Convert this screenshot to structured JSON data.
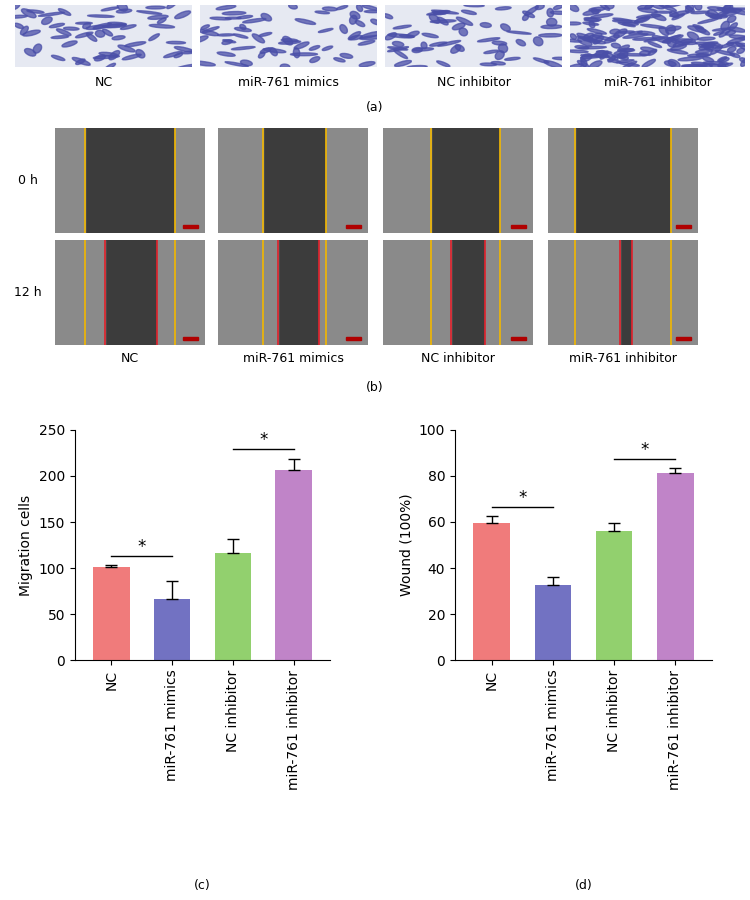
{
  "panel_a": {
    "label": "(a)",
    "captions": [
      "NC",
      "miR-761 mimics",
      "NC inhibitor",
      "miR-761 inhibitor"
    ]
  },
  "panel_b": {
    "label": "(b)",
    "captions": [
      "NC",
      "miR-761 mimics",
      "NC inhibitor",
      "miR-761 inhibitor"
    ],
    "rows": [
      "0 h",
      "12 h"
    ]
  },
  "chart_data": [
    {
      "type": "bar",
      "categories": [
        "NC",
        "miR-761 mimics",
        "NC inhibitor",
        "miR-761 inhibitor"
      ],
      "values": [
        101,
        66,
        116,
        207
      ],
      "errors": [
        2,
        20,
        15,
        12
      ],
      "colors": [
        "#f07b7b",
        "#7272c2",
        "#92d06e",
        "#c084c8"
      ],
      "ylabel": "Migration cells",
      "ylim": [
        0,
        250
      ],
      "yticks": [
        0,
        50,
        100,
        150,
        200,
        250
      ],
      "significance": [
        {
          "between": [
            "NC",
            "miR-761 mimics"
          ],
          "label": "*"
        },
        {
          "between": [
            "NC inhibitor",
            "miR-761 inhibitor"
          ],
          "label": "*"
        }
      ],
      "annotations": [
        "(c)"
      ]
    },
    {
      "type": "bar",
      "categories": [
        "NC",
        "miR-761 mimics",
        "NC inhibitor",
        "miR-761 inhibitor"
      ],
      "values": [
        59.5,
        32.5,
        56,
        81.5
      ],
      "errors": [
        3,
        3.5,
        3.5,
        2
      ],
      "colors": [
        "#f07b7b",
        "#7272c2",
        "#92d06e",
        "#c084c8"
      ],
      "ylabel": "Wound (100%)",
      "ylim": [
        0,
        100
      ],
      "yticks": [
        0,
        20,
        40,
        60,
        80,
        100
      ],
      "significance": [
        {
          "between": [
            "NC",
            "miR-761 mimics"
          ],
          "label": "*"
        },
        {
          "between": [
            "NC inhibitor",
            "miR-761 inhibitor"
          ],
          "label": "*"
        }
      ],
      "annotations": [
        "(d)"
      ]
    }
  ]
}
